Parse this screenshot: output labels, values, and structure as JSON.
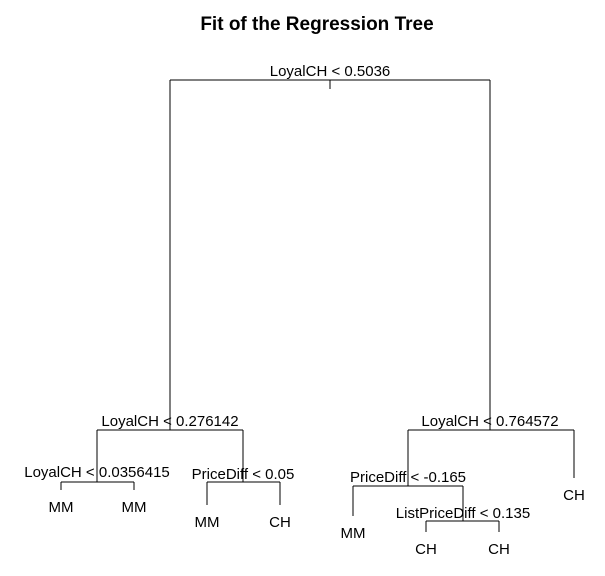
{
  "title": "Fit of the Regression Tree",
  "tree": {
    "split": "LoyalCH < 0.5036",
    "left": {
      "split": "LoyalCH < 0.276142",
      "left": {
        "split": "LoyalCH < 0.0356415",
        "left": {
          "leaf": "MM"
        },
        "right": {
          "leaf": "MM"
        }
      },
      "right": {
        "split": "PriceDiff < 0.05",
        "left": {
          "leaf": "MM"
        },
        "right": {
          "leaf": "CH"
        }
      }
    },
    "right": {
      "split": "LoyalCH < 0.764572",
      "left": {
        "split": "PriceDiff < -0.165",
        "left": {
          "leaf": "MM"
        },
        "right": {
          "split": "ListPriceDiff < 0.135",
          "left": {
            "leaf": "CH"
          },
          "right": {
            "leaf": "CH"
          }
        }
      },
      "right": {
        "leaf": "CH"
      }
    }
  }
}
